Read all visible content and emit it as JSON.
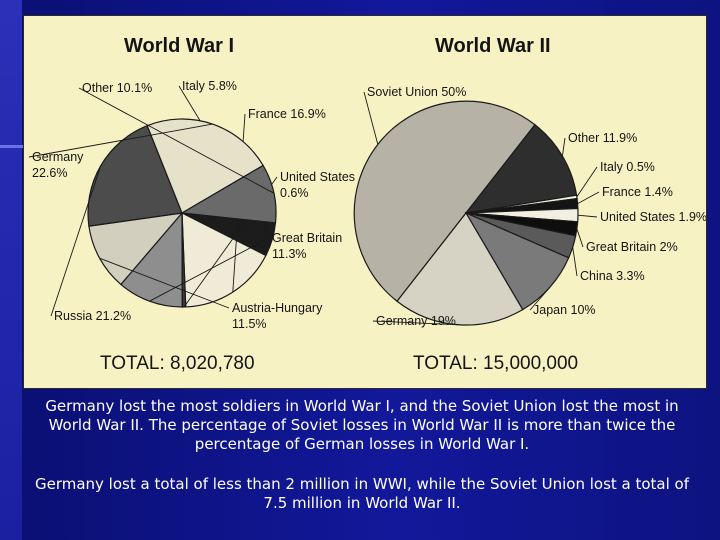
{
  "chart_data": [
    {
      "type": "pie",
      "title": "World War I",
      "total_label": "TOTAL: 8,020,780",
      "slices": [
        {
          "name": "Italy",
          "value": 5.8,
          "label_lines": [
            "Italy 5.8%"
          ],
          "color": "#1c1c1c"
        },
        {
          "name": "France",
          "value": 16.9,
          "label_lines": [
            "France 16.9%"
          ],
          "color": "#efebd6"
        },
        {
          "name": "United States",
          "value": 0.6,
          "label_lines": [
            "United States",
            "0.6%"
          ],
          "color": "#3a3a3a"
        },
        {
          "name": "Great Britain",
          "value": 11.3,
          "label_lines": [
            "Great Britain",
            "11.3%"
          ],
          "color": "#8e8e8e"
        },
        {
          "name": "Austria-Hungary",
          "value": 11.5,
          "label_lines": [
            "Austria-Hungary",
            "11.5%"
          ],
          "color": "#d2cfbf"
        },
        {
          "name": "Russia",
          "value": 21.2,
          "label_lines": [
            "Russia 21.2%"
          ],
          "color": "#4c4c4c"
        },
        {
          "name": "Germany",
          "value": 22.6,
          "label_lines": [
            "Germany",
            "22.6%"
          ],
          "color": "#e6e2ca"
        },
        {
          "name": "Other",
          "value": 10.1,
          "label_lines": [
            "Other 10.1%"
          ],
          "color": "#6a6a6a"
        }
      ]
    },
    {
      "type": "pie",
      "title": "World War II",
      "total_label": "TOTAL: 15,000,000",
      "slices": [
        {
          "name": "Soviet Union",
          "value": 50,
          "label_lines": [
            "Soviet Union 50%"
          ],
          "color": "#b6b3a6"
        },
        {
          "name": "Other",
          "value": 11.9,
          "label_lines": [
            "Other 11.9%"
          ],
          "color": "#2e2e2e"
        },
        {
          "name": "Italy",
          "value": 0.5,
          "label_lines": [
            "Italy 0.5%"
          ],
          "color": "#f2efe0"
        },
        {
          "name": "France",
          "value": 1.4,
          "label_lines": [
            "France 1.4%"
          ],
          "color": "#141414"
        },
        {
          "name": "United States",
          "value": 1.9,
          "label_lines": [
            "United States 1.9%"
          ],
          "color": "#f2efe0"
        },
        {
          "name": "Great Britain",
          "value": 2,
          "label_lines": [
            "Great Britain 2%"
          ],
          "color": "#0e0e0e"
        },
        {
          "name": "China",
          "value": 3.3,
          "label_lines": [
            "China 3.3%"
          ],
          "color": "#5a5a5a"
        },
        {
          "name": "Japan",
          "value": 10,
          "label_lines": [
            "Japan 10%"
          ],
          "color": "#7a7a7a"
        },
        {
          "name": "Germany",
          "value": 19,
          "label_lines": [
            "Germany 19%"
          ],
          "color": "#d6d3c4"
        }
      ]
    }
  ],
  "caption": {
    "paragraph1": "Germany lost the most soldiers in World War I, and the Soviet Union lost the most in World War II.  The percentage of Soviet losses in World War II is more than twice the percentage of German losses in World War I.",
    "paragraph2": "Germany lost a total of less than 2 million in WWI, while the Soviet Union lost a total of 7.5 million in World War II."
  },
  "colors": {
    "background": "#12189a",
    "panel": "#f7f2c4",
    "text": "#ffffff"
  }
}
